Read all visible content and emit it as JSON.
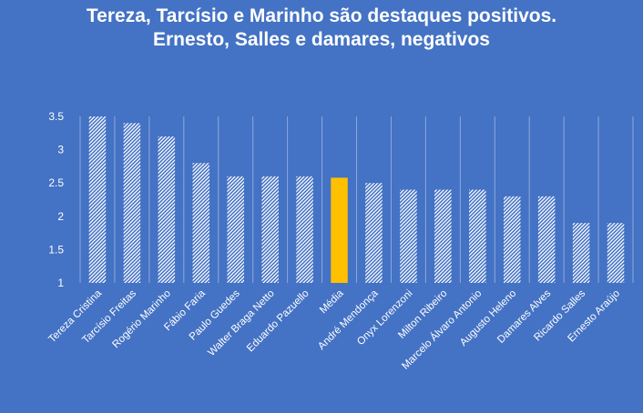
{
  "chart_data": {
    "type": "bar",
    "title": "Tereza, Tarcísio e Marinho são destaques positivos.",
    "subtitle": "Ernesto, Salles e damares, negativos",
    "categories": [
      "Tereza Cristina",
      "Tarcísio Freitas",
      "Rogério Marinho",
      "Fábio Faria",
      "Paulo Guedes",
      "Walter Braga Netto",
      "Eduardo Pazuello",
      "Média",
      "André Mendonça",
      "Onyx Lorenzoni",
      "Milton Ribeiro",
      "Marcelo Álvaro Antonio",
      "Augusto Heleno",
      "Damares Alves",
      "Ricardo Salles",
      "Ernesto Araújo"
    ],
    "values": [
      3.5,
      3.4,
      3.2,
      2.8,
      2.6,
      2.6,
      2.6,
      2.58,
      2.5,
      2.4,
      2.4,
      2.4,
      2.3,
      2.3,
      1.9,
      1.9
    ],
    "highlight_category": "Média",
    "ylim": [
      1,
      3.5
    ],
    "yticks": [
      "1",
      "1.5",
      "2",
      "2.5",
      "3",
      "3.5"
    ],
    "xlabel": "",
    "ylabel": "",
    "grid": "vertical",
    "colors": {
      "background": "#4472c4",
      "bar_stripe": "#ffffff",
      "highlight": "#ffc000",
      "gridline": "#8ea9db",
      "text": "#ffffff"
    }
  }
}
